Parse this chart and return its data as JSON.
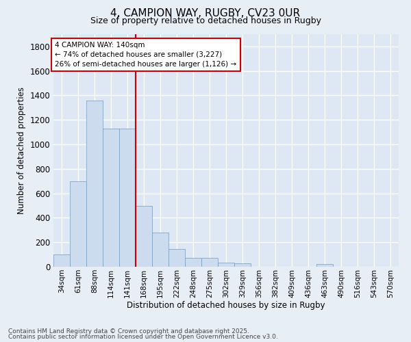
{
  "title1": "4, CAMPION WAY, RUGBY, CV23 0UR",
  "title2": "Size of property relative to detached houses in Rugby",
  "xlabel": "Distribution of detached houses by size in Rugby",
  "ylabel": "Number of detached properties",
  "bar_color": "#ccdcee",
  "bar_edgecolor": "#7799bb",
  "background_color": "#dde8f4",
  "fig_facecolor": "#e8eef6",
  "categories": [
    "34sqm",
    "61sqm",
    "88sqm",
    "114sqm",
    "141sqm",
    "168sqm",
    "195sqm",
    "222sqm",
    "248sqm",
    "275sqm",
    "302sqm",
    "329sqm",
    "356sqm",
    "382sqm",
    "409sqm",
    "436sqm",
    "463sqm",
    "490sqm",
    "516sqm",
    "543sqm",
    "570sqm"
  ],
  "values": [
    100,
    700,
    1360,
    1130,
    1130,
    500,
    280,
    145,
    75,
    70,
    35,
    30,
    0,
    0,
    0,
    0,
    20,
    0,
    0,
    0,
    0
  ],
  "vline_x": 4.5,
  "vline_color": "#cc0000",
  "annotation_line1": "4 CAMPION WAY: 140sqm",
  "annotation_line2": "← 74% of detached houses are smaller (3,227)",
  "annotation_line3": "26% of semi-detached houses are larger (1,126) →",
  "ylim": [
    0,
    1900
  ],
  "yticks": [
    0,
    200,
    400,
    600,
    800,
    1000,
    1200,
    1400,
    1600,
    1800
  ],
  "footer1": "Contains HM Land Registry data © Crown copyright and database right 2025.",
  "footer2": "Contains public sector information licensed under the Open Government Licence v3.0."
}
